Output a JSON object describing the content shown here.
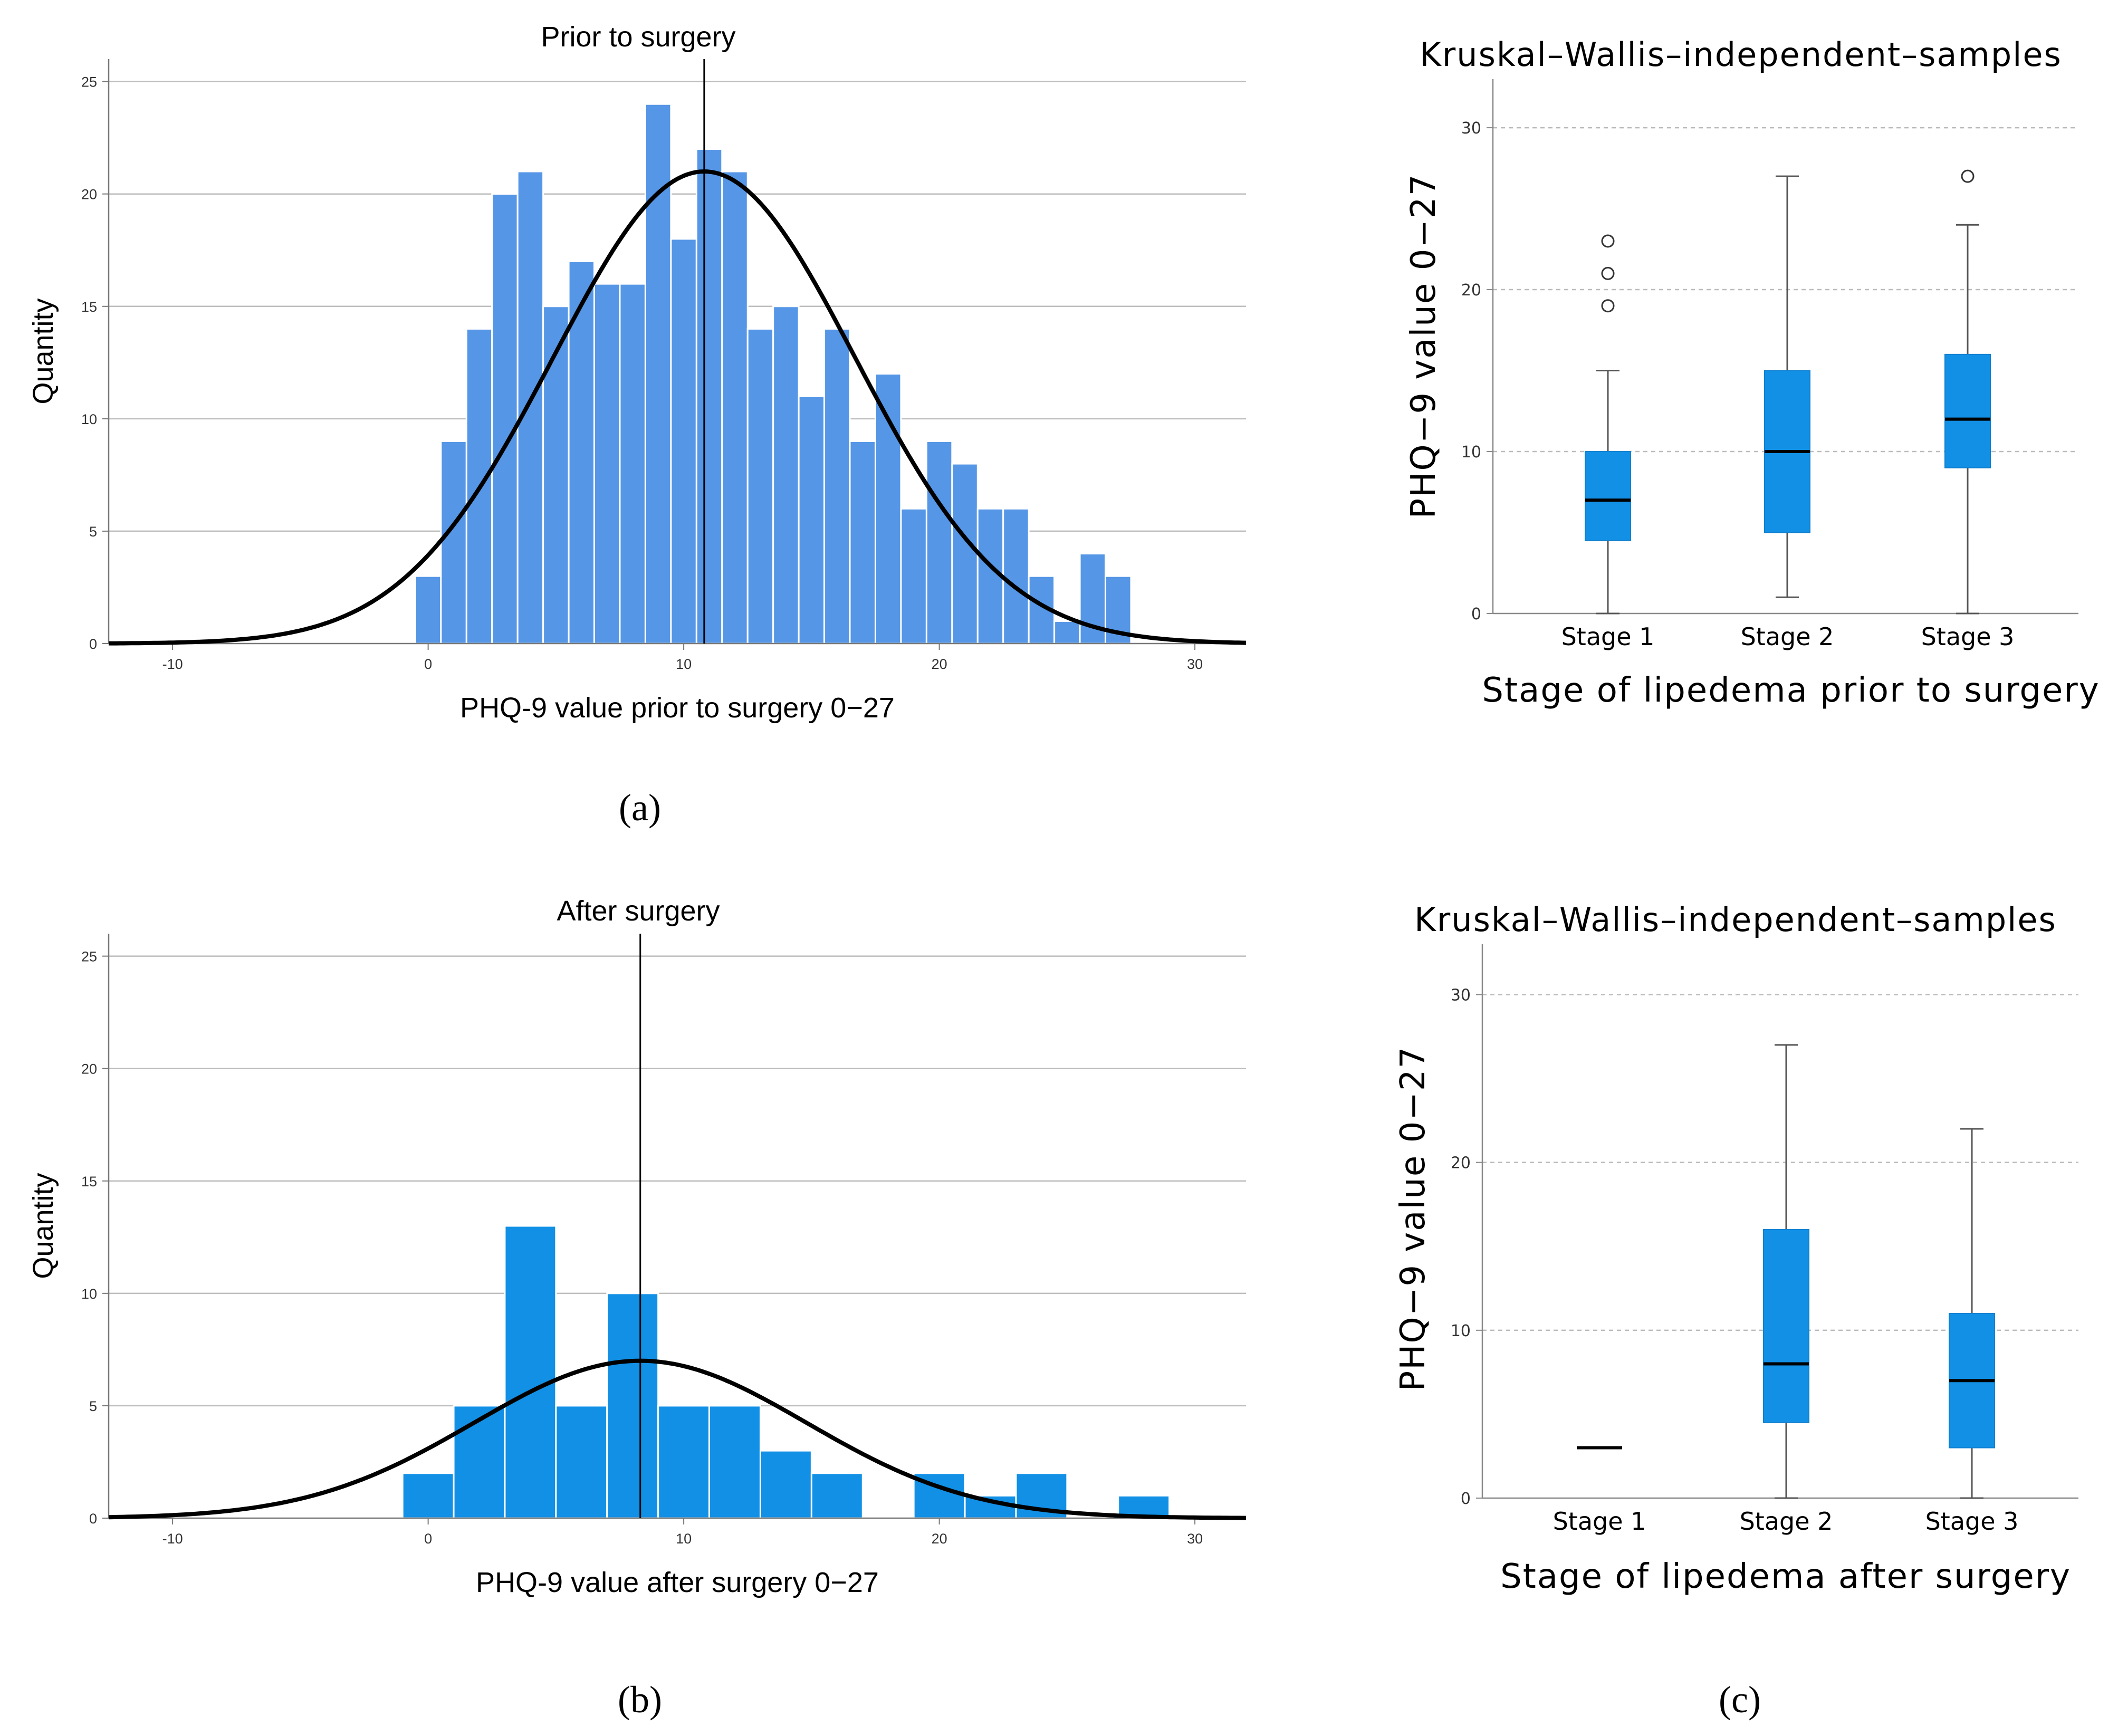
{
  "chart_data": [
    {
      "id": "hist-prior",
      "type": "bar",
      "subtype": "histogram-with-normal-curve",
      "title": "Prior to surgery",
      "xlabel": "PHQ-9 value prior to surgery 0−27",
      "ylabel": "Quantity",
      "xlim": [
        -12.5,
        32
      ],
      "ylim": [
        0,
        26
      ],
      "xticks": [
        -10,
        0,
        10,
        20,
        30
      ],
      "yticks": [
        0,
        5,
        10,
        15,
        20,
        25
      ],
      "bin_width": 1,
      "x": [
        0,
        1,
        2,
        3,
        4,
        5,
        6,
        7,
        8,
        9,
        10,
        11,
        12,
        13,
        14,
        15,
        16,
        17,
        18,
        19,
        20,
        21,
        22,
        23,
        24,
        25,
        26,
        27
      ],
      "values": [
        3,
        9,
        14,
        20,
        21,
        15,
        17,
        16,
        16,
        24,
        18,
        22,
        21,
        14,
        15,
        11,
        14,
        9,
        12,
        6,
        9,
        8,
        6,
        6,
        3,
        1,
        4,
        3
      ],
      "mean_line": 10.8,
      "normal_curve": {
        "mean": 10.8,
        "sd": 5.9,
        "peak": 21
      },
      "bar_color": "#5596E6",
      "caption": "(a)"
    },
    {
      "id": "hist-after",
      "type": "bar",
      "subtype": "histogram-with-normal-curve",
      "title": "After surgery",
      "xlabel": "PHQ-9 value after surgery 0−27",
      "ylabel": "Quantity",
      "xlim": [
        -12.5,
        32
      ],
      "ylim": [
        0,
        26
      ],
      "xticks": [
        -10,
        0,
        10,
        20,
        30
      ],
      "yticks": [
        0,
        5,
        10,
        15,
        20,
        25
      ],
      "bin_width": 2,
      "x": [
        0,
        2,
        4,
        6,
        8,
        10,
        12,
        14,
        16,
        18,
        20,
        22,
        24,
        26,
        28
      ],
      "values": [
        2,
        5,
        13,
        5,
        10,
        5,
        5,
        3,
        2,
        0,
        2,
        1,
        2,
        0,
        1
      ],
      "mean_line": 8.3,
      "normal_curve": {
        "mean": 8.3,
        "sd": 6.5,
        "peak": 7
      },
      "bar_color": "#1190E6",
      "caption": "(b)"
    },
    {
      "id": "box-prior",
      "type": "box",
      "title": "Kruskal–Wallis–independent–samples",
      "xlabel": "Stage of lipedema prior to surgery",
      "ylabel": "PHQ−9 value 0−27",
      "ylim": [
        0,
        33
      ],
      "yticks": [
        0,
        10,
        20,
        30
      ],
      "categories": [
        "Stage 1",
        "Stage 2",
        "Stage 3"
      ],
      "boxes": [
        {
          "min": 0,
          "q1": 4.5,
          "median": 7,
          "q3": 10,
          "max": 15,
          "outliers": [
            19,
            21,
            23
          ]
        },
        {
          "min": 1,
          "q1": 5,
          "median": 10,
          "q3": 15,
          "max": 27,
          "outliers": []
        },
        {
          "min": 0,
          "q1": 9,
          "median": 12,
          "q3": 16,
          "max": 24,
          "outliers": [
            27
          ]
        }
      ],
      "box_color": "#1190E6"
    },
    {
      "id": "box-after",
      "type": "box",
      "title": "Kruskal–Wallis–independent–samples",
      "xlabel": "Stage of lipedema after surgery",
      "ylabel": "PHQ−9 value 0−27",
      "ylim": [
        0,
        33
      ],
      "yticks": [
        0,
        10,
        20,
        30
      ],
      "categories": [
        "Stage 1",
        "Stage 2",
        "Stage 3"
      ],
      "boxes": [
        {
          "min": 3,
          "q1": 3,
          "median": 3,
          "q3": 3,
          "max": 3,
          "outliers": []
        },
        {
          "min": 0,
          "q1": 4.5,
          "median": 8,
          "q3": 16,
          "max": 27,
          "outliers": []
        },
        {
          "min": 0,
          "q1": 3,
          "median": 7,
          "q3": 11,
          "max": 22,
          "outliers": []
        }
      ],
      "box_color": "#1190E6",
      "caption": "(c)"
    }
  ]
}
